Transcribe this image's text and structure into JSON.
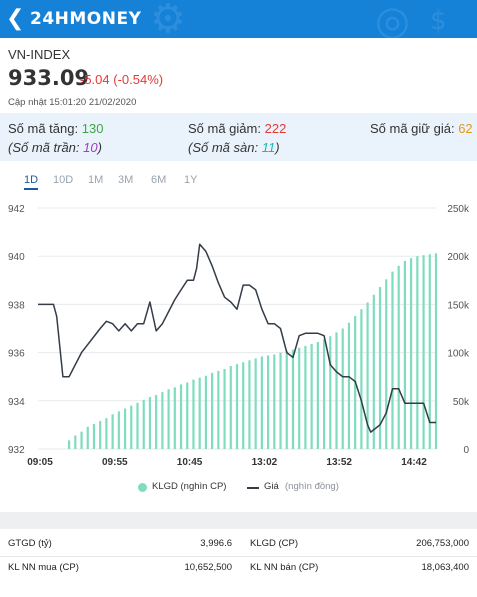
{
  "header": {
    "logo_text": "24HMONEY",
    "back_icon": "chevron-left-icon",
    "background_color": "#1582d8"
  },
  "index": {
    "name": "VN-INDEX",
    "price": "933.09",
    "change": "-5.04 (-0.54%)",
    "updated": "Cập nhật 15:01:20 21/02/2020"
  },
  "breadth": {
    "up_label": "Số mã tăng:",
    "up_value": "130",
    "ceiling_label": "(Số mã trần:",
    "ceiling_value": "10",
    "ceiling_close": ")",
    "down_label": "Số mã giảm:",
    "down_value": "222",
    "floor_label": "(Số mã sàn:",
    "floor_value": "11",
    "floor_close": ")",
    "unchanged_label": "Số mã giữ giá:",
    "unchanged_value": "62"
  },
  "ranges": [
    {
      "label": "1D",
      "active": true
    },
    {
      "label": "10D",
      "active": false
    },
    {
      "label": "1M",
      "active": false
    },
    {
      "label": "3M",
      "active": false
    },
    {
      "label": "6M",
      "active": false
    },
    {
      "label": "1Y",
      "active": false
    }
  ],
  "chart_data": {
    "type": "line",
    "x_ticks": [
      "09:05",
      "09:55",
      "10:45",
      "13:02",
      "13:52",
      "14:42"
    ],
    "y_left": {
      "ticks": [
        "942",
        "940",
        "938",
        "936",
        "934",
        "932"
      ],
      "lim": [
        932,
        942
      ]
    },
    "y_right": {
      "ticks": [
        "250k",
        "200k",
        "150k",
        "100k",
        "50k",
        "0"
      ],
      "lim": [
        0,
        250000
      ]
    },
    "series": [
      {
        "name": "KLGD",
        "kind": "bar",
        "color": "#7fdcbf",
        "values": [
          0,
          0,
          0,
          0,
          0,
          9000,
          14000,
          18000,
          23000,
          26000,
          29000,
          32000,
          36000,
          39000,
          42000,
          45000,
          48000,
          51000,
          54000,
          56000,
          59000,
          62000,
          64000,
          67000,
          69000,
          72000,
          74000,
          76000,
          79000,
          81000,
          83000,
          86000,
          88000,
          90000,
          92000,
          94000,
          96000,
          97000,
          98000,
          100000,
          102000,
          103000,
          105000,
          107000,
          109000,
          111000,
          114000,
          117000,
          121000,
          125000,
          131000,
          138000,
          145000,
          152000,
          160000,
          168000,
          176000,
          184000,
          190000,
          195000,
          198000,
          200000,
          201000,
          202000,
          203000
        ]
      },
      {
        "name": "Giá",
        "kind": "line",
        "color": "#333c47",
        "values": [
          [
            0,
            938.0
          ],
          [
            2.5,
            938.0
          ],
          [
            3,
            937.5
          ],
          [
            4,
            935.0
          ],
          [
            5,
            935.0
          ],
          [
            7,
            936.0
          ],
          [
            10,
            937.0
          ],
          [
            11,
            937.3
          ],
          [
            12,
            937.2
          ],
          [
            13,
            936.9
          ],
          [
            14,
            937.2
          ],
          [
            15,
            936.9
          ],
          [
            16,
            937.2
          ],
          [
            17,
            937.2
          ],
          [
            18,
            938.1
          ],
          [
            19,
            936.9
          ],
          [
            20,
            937.2
          ],
          [
            21,
            937.7
          ],
          [
            22,
            938.2
          ],
          [
            23,
            938.6
          ],
          [
            24,
            939.0
          ],
          [
            25,
            939.0
          ],
          [
            25.5,
            939.5
          ],
          [
            26,
            940.5
          ],
          [
            27,
            940.2
          ],
          [
            28,
            939.6
          ],
          [
            29,
            938.9
          ],
          [
            30,
            938.3
          ],
          [
            31,
            938.1
          ],
          [
            32,
            937.8
          ],
          [
            33,
            938.8
          ],
          [
            34,
            938.8
          ],
          [
            35,
            938.6
          ],
          [
            36,
            937.8
          ],
          [
            37,
            937.2
          ],
          [
            38,
            937.2
          ],
          [
            39,
            937.0
          ],
          [
            40,
            936.0
          ],
          [
            41,
            935.8
          ],
          [
            42,
            936.7
          ],
          [
            43,
            936.8
          ],
          [
            44,
            936.8
          ],
          [
            45,
            936.8
          ],
          [
            46,
            936.7
          ],
          [
            47,
            935.5
          ],
          [
            48,
            935.2
          ],
          [
            49,
            935.0
          ],
          [
            50,
            935.0
          ],
          [
            51,
            934.8
          ],
          [
            52,
            934.0
          ],
          [
            53,
            933.0
          ],
          [
            53.5,
            932.7
          ],
          [
            55,
            933.0
          ],
          [
            56,
            933.5
          ],
          [
            57,
            934.5
          ],
          [
            58,
            934.5
          ],
          [
            59,
            933.9
          ],
          [
            60,
            933.9
          ],
          [
            61,
            933.9
          ],
          [
            62,
            933.9
          ],
          [
            63,
            933.1
          ],
          [
            64,
            933.1
          ]
        ]
      }
    ],
    "legend": [
      {
        "marker": "dot",
        "color": "#7fdcbf",
        "label": "KLGD (nghìn CP)",
        "note": ""
      },
      {
        "marker": "line",
        "color": "#333c47",
        "label": "Giá",
        "note": "(nghìn đồng)"
      }
    ],
    "grid": true
  },
  "stats": {
    "gtgd_label": "GTGD (tỷ)",
    "gtgd_value": "3,996.6",
    "klgd_label": "KLGD (CP)",
    "klgd_value": "206,753,000",
    "nn_buy_label": "KL NN mua (CP)",
    "nn_buy_value": "10,652,500",
    "nn_sell_label": "KL NN bán (CP)",
    "nn_sell_value": "18,063,400"
  }
}
